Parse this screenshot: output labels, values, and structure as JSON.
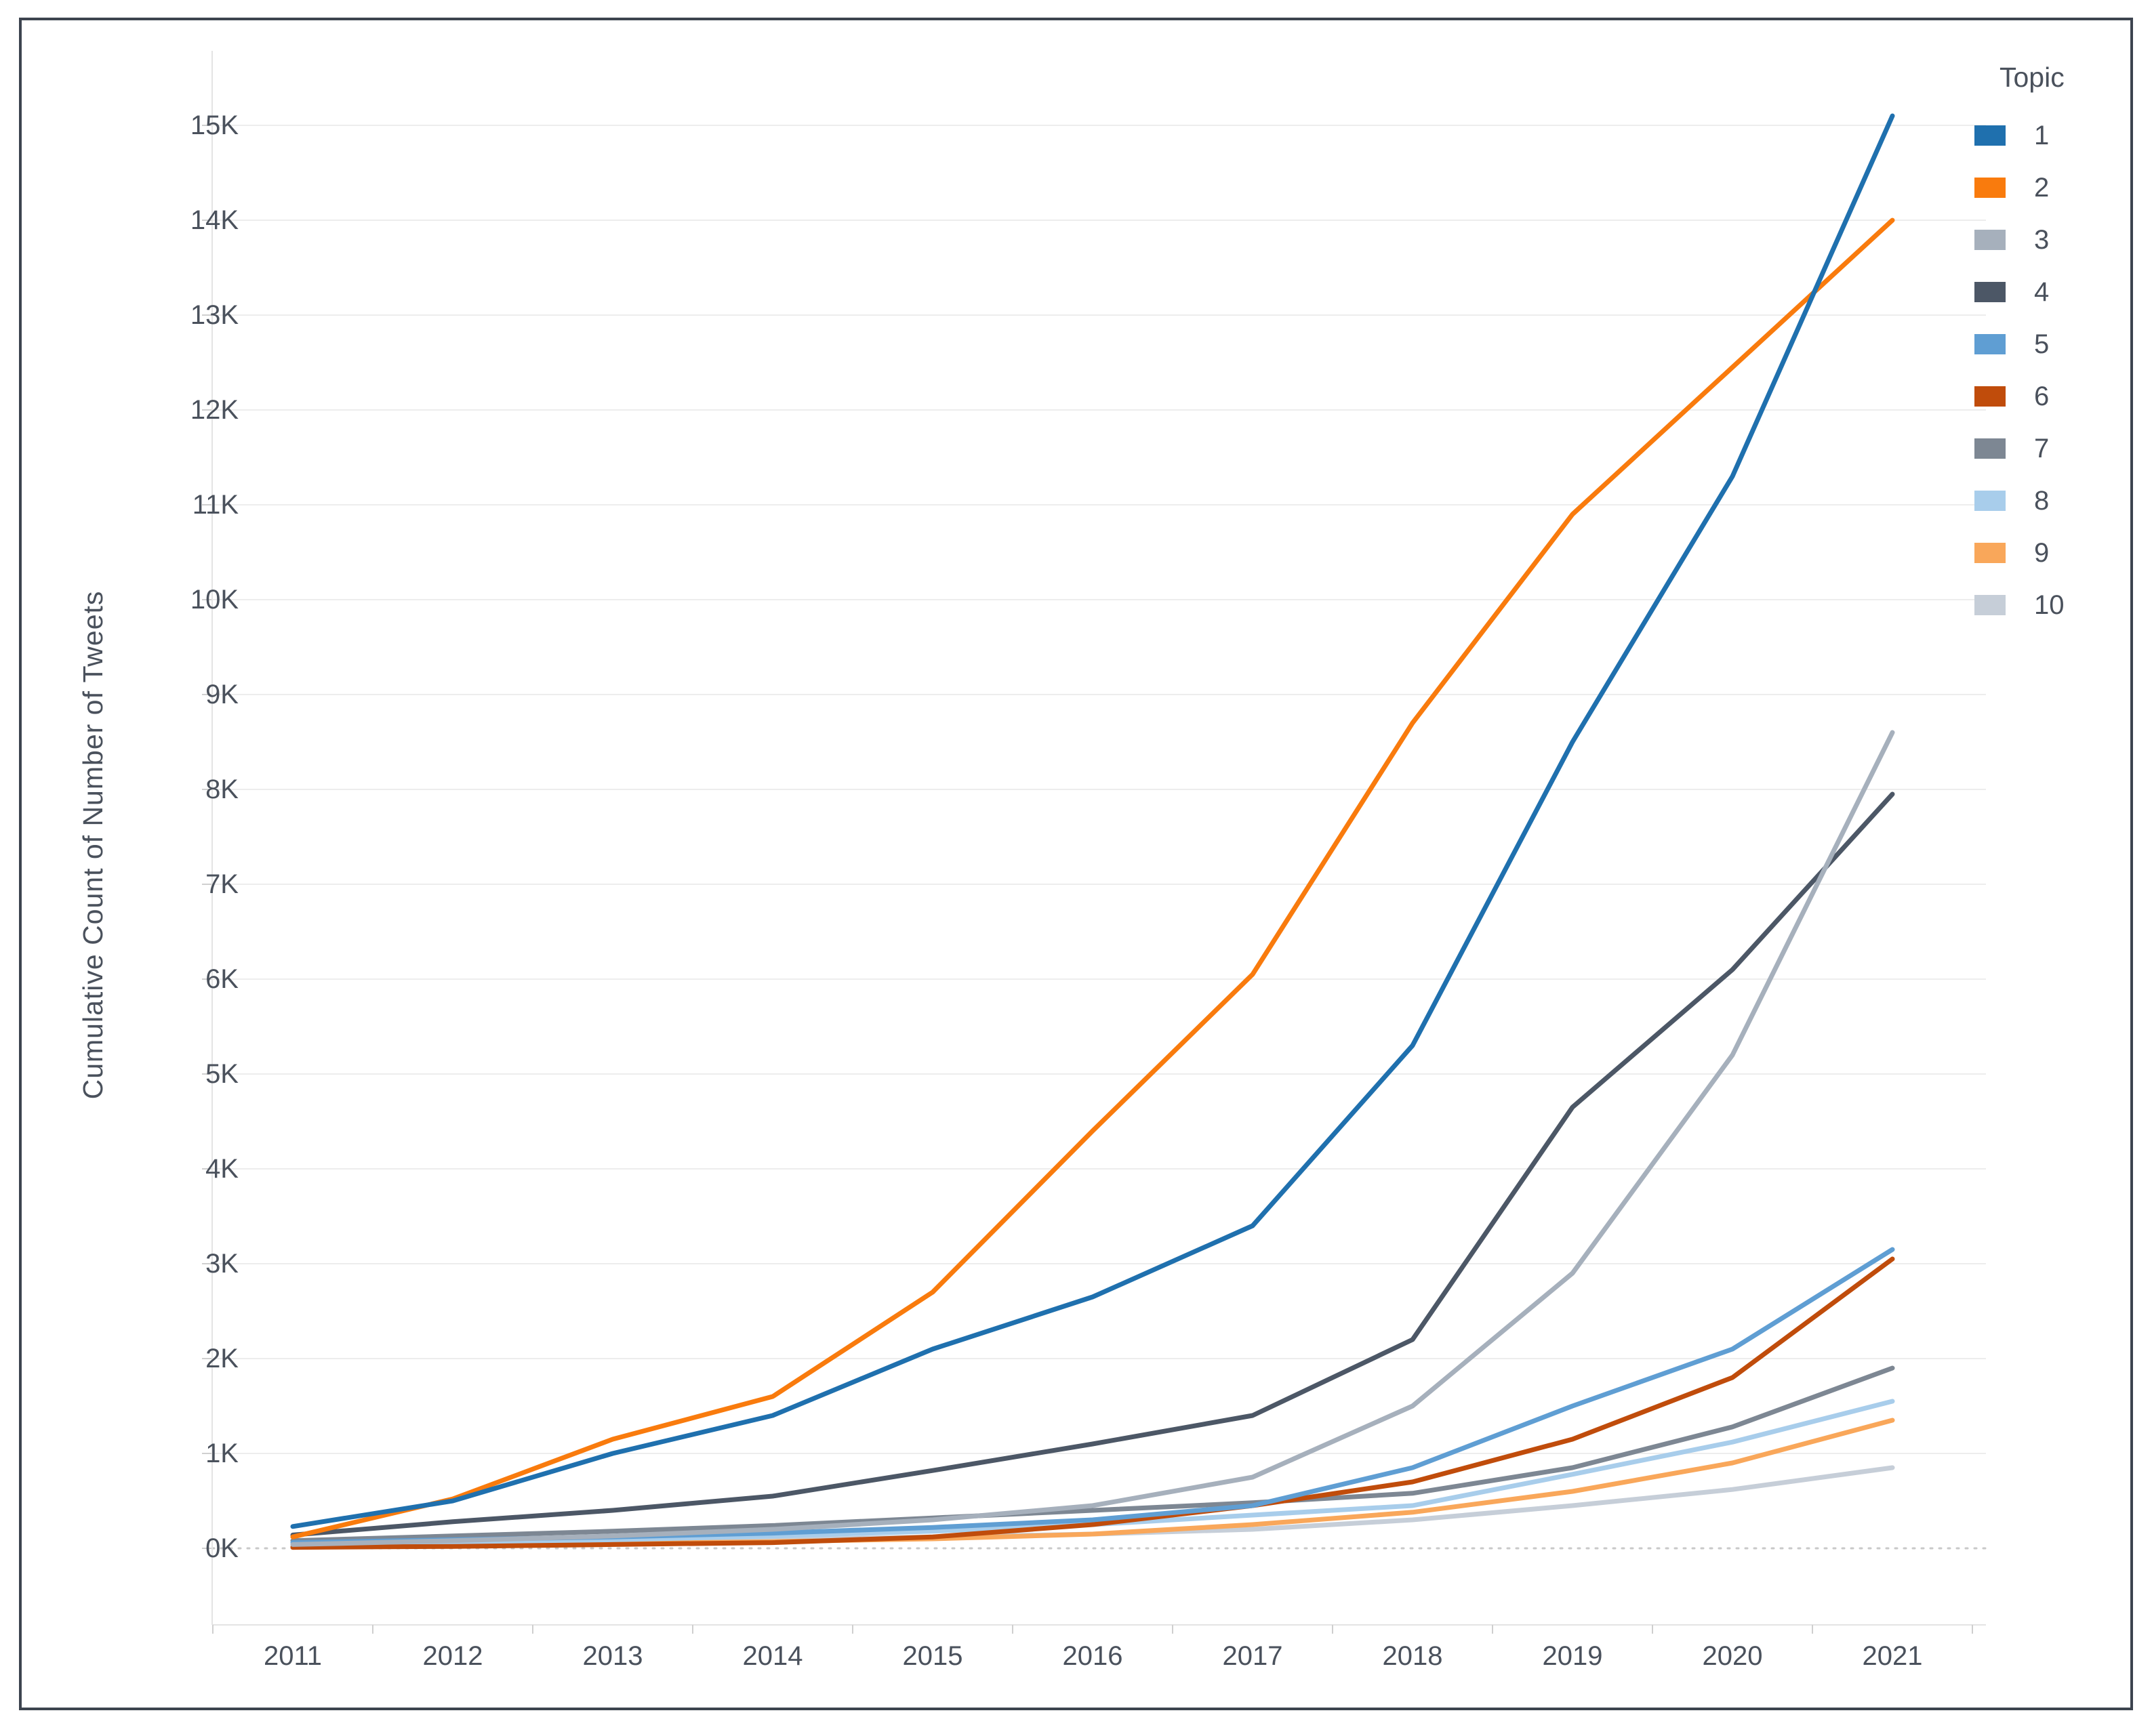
{
  "y_axis_title": "Cumulative Count of Number of Tweets",
  "legend": {
    "title": "Topic",
    "items": [
      "1",
      "2",
      "3",
      "4",
      "5",
      "6",
      "7",
      "8",
      "9",
      "10"
    ]
  },
  "colors": {
    "border": "#3d444f",
    "text": "#4a515c",
    "gridline": "#ededed",
    "zero_line": "#c9c9c9",
    "axis_line": "#e4e4e4",
    "tick_mark": "#cfcfcf",
    "background": "#ffffff"
  },
  "chart_data": {
    "type": "line",
    "title": "",
    "xlabel": "",
    "ylabel": "Cumulative Count of Number of Tweets",
    "unit": "thousands of tweets",
    "x": [
      2011,
      2012,
      2013,
      2014,
      2015,
      2016,
      2017,
      2018,
      2019,
      2020,
      2021
    ],
    "x_tick_labels": [
      "2011",
      "2012",
      "2013",
      "2014",
      "2015",
      "2016",
      "2017",
      "2018",
      "2019",
      "2020",
      "2021"
    ],
    "y_ticks": [
      0,
      1,
      2,
      3,
      4,
      5,
      6,
      7,
      8,
      9,
      10,
      11,
      12,
      13,
      14,
      15
    ],
    "y_tick_labels": [
      "0K",
      "1K",
      "2K",
      "3K",
      "4K",
      "5K",
      "6K",
      "7K",
      "8K",
      "9K",
      "10K",
      "11K",
      "12K",
      "13K",
      "14K",
      "15K"
    ],
    "ylim": [
      0,
      15.8
    ],
    "grid": true,
    "zero_line_style": "dotted",
    "legend_title": "Topic",
    "legend_position": "top-right",
    "series": [
      {
        "name": "1",
        "color": "#1f70ae",
        "values": [
          0.23,
          0.5,
          1.0,
          1.4,
          2.1,
          2.65,
          3.4,
          5.3,
          8.5,
          11.3,
          15.1
        ]
      },
      {
        "name": "2",
        "color": "#f97b0d",
        "values": [
          0.12,
          0.52,
          1.15,
          1.6,
          2.7,
          4.4,
          6.05,
          8.7,
          10.9,
          12.45,
          14.0
        ]
      },
      {
        "name": "3",
        "color": "#a6b0bc",
        "values": [
          0.04,
          0.08,
          0.13,
          0.2,
          0.3,
          0.45,
          0.75,
          1.5,
          2.9,
          5.2,
          8.6
        ]
      },
      {
        "name": "4",
        "color": "#4c5766",
        "values": [
          0.14,
          0.28,
          0.4,
          0.55,
          0.82,
          1.1,
          1.4,
          2.2,
          4.65,
          6.1,
          7.95
        ]
      },
      {
        "name": "5",
        "color": "#5f9ed3",
        "values": [
          0.06,
          0.09,
          0.12,
          0.16,
          0.22,
          0.3,
          0.45,
          0.85,
          1.5,
          2.1,
          3.15
        ]
      },
      {
        "name": "6",
        "color": "#c04c0b",
        "values": [
          0.01,
          0.02,
          0.04,
          0.06,
          0.12,
          0.25,
          0.45,
          0.7,
          1.15,
          1.8,
          3.05
        ]
      },
      {
        "name": "7",
        "color": "#7d8793",
        "values": [
          0.08,
          0.13,
          0.18,
          0.24,
          0.32,
          0.4,
          0.48,
          0.58,
          0.85,
          1.28,
          1.9
        ]
      },
      {
        "name": "8",
        "color": "#a8cdeb",
        "values": [
          0.04,
          0.06,
          0.09,
          0.13,
          0.18,
          0.25,
          0.35,
          0.45,
          0.78,
          1.12,
          1.55
        ]
      },
      {
        "name": "9",
        "color": "#f9a75a",
        "values": [
          0.01,
          0.03,
          0.05,
          0.07,
          0.1,
          0.15,
          0.25,
          0.38,
          0.6,
          0.9,
          1.35
        ]
      },
      {
        "name": "10",
        "color": "#c6ced8",
        "values": [
          0.02,
          0.04,
          0.06,
          0.09,
          0.12,
          0.15,
          0.2,
          0.3,
          0.45,
          0.62,
          0.85
        ]
      }
    ]
  }
}
